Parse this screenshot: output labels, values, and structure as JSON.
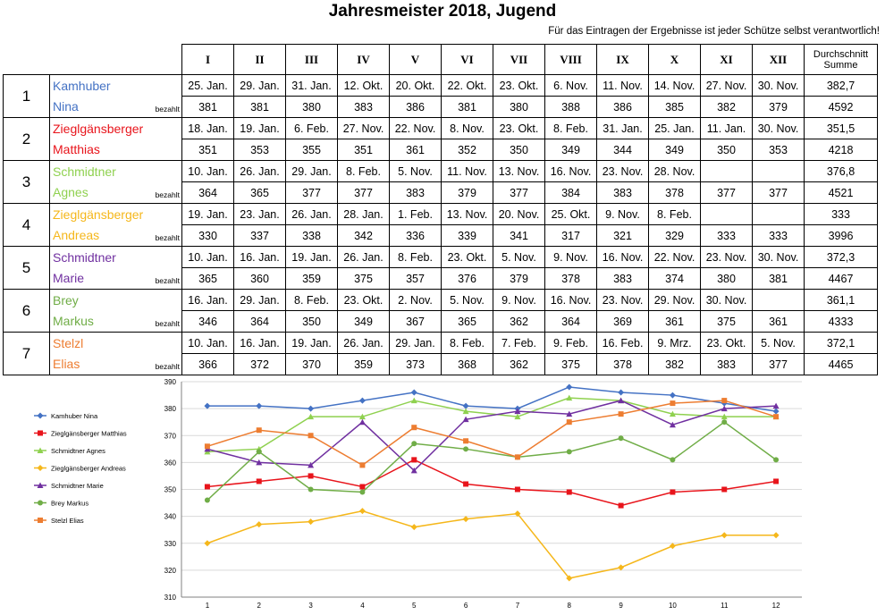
{
  "title": "Jahresmeister 2018, Jugend",
  "note": "Für das Eintragen der Ergebnisse ist jeder Schütze selbst verantwortlich!",
  "rounds": [
    "I",
    "II",
    "III",
    "IV",
    "V",
    "VI",
    "VII",
    "VIII",
    "IX",
    "X",
    "XI",
    "XII"
  ],
  "avg_header_1": "Durchschnitt",
  "avg_header_2": "Summe",
  "paid_label": "bezahlt",
  "shooters": [
    {
      "rank": "1",
      "first_line": "Kamhuber",
      "second_line": "Nina",
      "color": "#4472C4",
      "paid": true,
      "dates": [
        "25. Jan.",
        "29. Jan.",
        "31. Jan.",
        "12. Okt.",
        "20. Okt.",
        "22. Okt.",
        "23. Okt.",
        "6. Nov.",
        "11. Nov.",
        "14. Nov.",
        "27. Nov.",
        "30. Nov."
      ],
      "scores": [
        "381",
        "381",
        "380",
        "383",
        "386",
        "381",
        "380",
        "388",
        "386",
        "385",
        "382",
        "379"
      ],
      "average": "382,7",
      "total": "4592"
    },
    {
      "rank": "2",
      "first_line": "Zieglgänsberger",
      "second_line": "Matthias",
      "color": "#E8141B",
      "paid": false,
      "dates": [
        "18. Jan.",
        "19. Jan.",
        "6. Feb.",
        "27. Nov.",
        "22. Nov.",
        "8. Nov.",
        "23. Okt.",
        "8. Feb.",
        "31. Jan.",
        "25. Jan.",
        "11. Jan.",
        "30. Nov."
      ],
      "scores": [
        "351",
        "353",
        "355",
        "351",
        "361",
        "352",
        "350",
        "349",
        "344",
        "349",
        "350",
        "353"
      ],
      "average": "351,5",
      "total": "4218"
    },
    {
      "rank": "3",
      "first_line": "Schmidtner",
      "second_line": "Agnes",
      "color": "#8FD14F",
      "paid": true,
      "dates": [
        "10. Jan.",
        "26. Jan.",
        "29. Jan.",
        "8. Feb.",
        "5. Nov.",
        "11. Nov.",
        "13. Nov.",
        "16. Nov.",
        "23. Nov.",
        "28. Nov.",
        "",
        ""
      ],
      "scores": [
        "364",
        "365",
        "377",
        "377",
        "383",
        "379",
        "377",
        "384",
        "383",
        "378",
        "377",
        "377"
      ],
      "average": "376,8",
      "total": "4521"
    },
    {
      "rank": "4",
      "first_line": "Zieglgänsberger",
      "second_line": "Andreas",
      "color": "#F5B71B",
      "paid": true,
      "dates": [
        "19. Jan.",
        "23. Jan.",
        "26. Jan.",
        "28. Jan.",
        "1. Feb.",
        "13. Nov.",
        "20. Nov.",
        "25. Okt.",
        "9. Nov.",
        "8. Feb.",
        "",
        ""
      ],
      "scores": [
        "330",
        "337",
        "338",
        "342",
        "336",
        "339",
        "341",
        "317",
        "321",
        "329",
        "333",
        "333"
      ],
      "average": "333",
      "total": "3996"
    },
    {
      "rank": "5",
      "first_line": "Schmidtner",
      "second_line": "Marie",
      "color": "#7030A0",
      "paid": true,
      "dates": [
        "10. Jan.",
        "16. Jan.",
        "19. Jan.",
        "26. Jan.",
        "8. Feb.",
        "23. Okt.",
        "5. Nov.",
        "9. Nov.",
        "16. Nov.",
        "22. Nov.",
        "23. Nov.",
        "30. Nov."
      ],
      "scores": [
        "365",
        "360",
        "359",
        "375",
        "357",
        "376",
        "379",
        "378",
        "383",
        "374",
        "380",
        "381"
      ],
      "average": "372,3",
      "total": "4467"
    },
    {
      "rank": "6",
      "first_line": "Brey",
      "second_line": "Markus",
      "color": "#70AD47",
      "paid": true,
      "dates": [
        "16. Jan.",
        "29. Jan.",
        "8. Feb.",
        "23. Okt.",
        "2. Nov.",
        "5. Nov.",
        "9. Nov.",
        "16. Nov.",
        "23. Nov.",
        "29. Nov.",
        "30. Nov.",
        ""
      ],
      "scores": [
        "346",
        "364",
        "350",
        "349",
        "367",
        "365",
        "362",
        "364",
        "369",
        "361",
        "375",
        "361"
      ],
      "average": "361,1",
      "total": "4333"
    },
    {
      "rank": "7",
      "first_line": "Stelzl",
      "second_line": "Elias",
      "color": "#ED7D31",
      "paid": true,
      "dates": [
        "10. Jan.",
        "16. Jan.",
        "19. Jan.",
        "26. Jan.",
        "29. Jan.",
        "8. Feb.",
        "7. Feb.",
        "9. Feb.",
        "16. Feb.",
        "9. Mrz.",
        "23. Okt.",
        "5. Nov."
      ],
      "scores": [
        "366",
        "372",
        "370",
        "359",
        "373",
        "368",
        "362",
        "375",
        "378",
        "382",
        "383",
        "377"
      ],
      "average": "372,1",
      "total": "4465"
    }
  ],
  "chart_data": {
    "type": "line",
    "title": "",
    "xlabel": "",
    "ylabel": "",
    "x": [
      1,
      2,
      3,
      4,
      5,
      6,
      7,
      8,
      9,
      10,
      11,
      12
    ],
    "ylim": [
      310,
      390
    ],
    "yticks": [
      310,
      320,
      330,
      340,
      350,
      360,
      370,
      380,
      390
    ],
    "grid": "horizontal",
    "legend": "left",
    "series": [
      {
        "name": "Kamhuber Nina",
        "color": "#4472C4",
        "marker": "diamond",
        "values": [
          381,
          381,
          380,
          383,
          386,
          381,
          380,
          388,
          386,
          385,
          382,
          379
        ]
      },
      {
        "name": "Zieglgänsberger Matthias",
        "color": "#E8141B",
        "marker": "square",
        "values": [
          351,
          353,
          355,
          351,
          361,
          352,
          350,
          349,
          344,
          349,
          350,
          353
        ]
      },
      {
        "name": "Schmidtner Agnes",
        "color": "#8FD14F",
        "marker": "triangle",
        "values": [
          364,
          365,
          377,
          377,
          383,
          379,
          377,
          384,
          383,
          378,
          377,
          377
        ]
      },
      {
        "name": "Zieglgänsberger Andreas",
        "color": "#F5B71B",
        "marker": "diamond",
        "values": [
          330,
          337,
          338,
          342,
          336,
          339,
          341,
          317,
          321,
          329,
          333,
          333
        ]
      },
      {
        "name": "Schmidtner Marie",
        "color": "#7030A0",
        "marker": "triangle",
        "values": [
          365,
          360,
          359,
          375,
          357,
          376,
          379,
          378,
          383,
          374,
          380,
          381
        ]
      },
      {
        "name": "Brey Markus",
        "color": "#70AD47",
        "marker": "circle",
        "values": [
          346,
          364,
          350,
          349,
          367,
          365,
          362,
          364,
          369,
          361,
          375,
          361
        ]
      },
      {
        "name": "Stelzl Elias",
        "color": "#ED7D31",
        "marker": "square",
        "values": [
          366,
          372,
          370,
          359,
          373,
          368,
          362,
          375,
          378,
          382,
          383,
          377
        ]
      }
    ]
  }
}
